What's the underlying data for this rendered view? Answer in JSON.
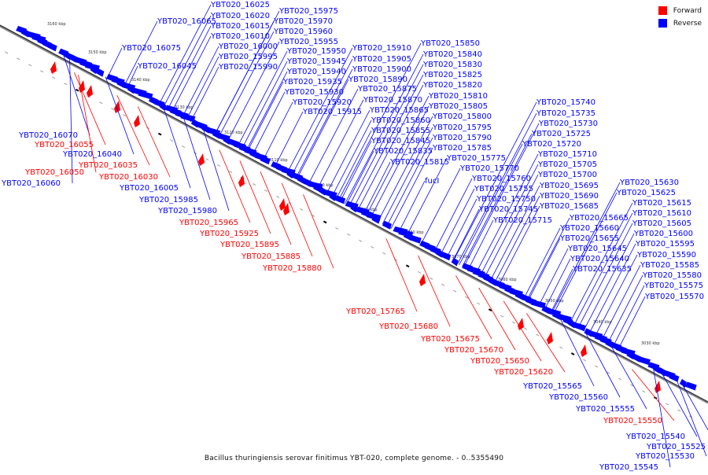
{
  "legend": {
    "forward_label": "Forward",
    "reverse_label": "Reverse",
    "forward_color": "#ff0000",
    "reverse_color": "#0000ff"
  },
  "caption": "Bacillus thuringiensis serovar finitimus YBT-020, complete genome. - 0..5355490",
  "ticks": [
    "3160 kbp",
    "3150 kbp",
    "3140 kbp",
    "3130 kbp",
    "3120 kbp",
    "3110 kbp",
    "3100 kbp",
    "3090 kbp",
    "3080 kbp",
    "3070 kbp",
    "3060 kbp",
    "3050 kbp",
    "3040 kbp",
    "3030 kbp"
  ],
  "genes": [
    {
      "name": "YBT020_16025",
      "strand": "reverse"
    },
    {
      "name": "YBT020_16020",
      "strand": "reverse"
    },
    {
      "name": "YBT020_16015",
      "strand": "reverse"
    },
    {
      "name": "YBT020_16065",
      "strand": "reverse"
    },
    {
      "name": "YBT020_16010",
      "strand": "reverse"
    },
    {
      "name": "YBT020_16000",
      "strand": "reverse"
    },
    {
      "name": "YBT020_15995",
      "strand": "reverse"
    },
    {
      "name": "YBT020_15990",
      "strand": "reverse"
    },
    {
      "name": "YBT020_16075",
      "strand": "reverse"
    },
    {
      "name": "YBT020_16045",
      "strand": "reverse"
    },
    {
      "name": "YBT020_15975",
      "strand": "reverse"
    },
    {
      "name": "YBT020_15970",
      "strand": "reverse"
    },
    {
      "name": "YBT020_15960",
      "strand": "reverse"
    },
    {
      "name": "YBT020_15955",
      "strand": "reverse"
    },
    {
      "name": "YBT020_15950",
      "strand": "reverse"
    },
    {
      "name": "YBT020_15945",
      "strand": "reverse"
    },
    {
      "name": "YBT020_15940",
      "strand": "reverse"
    },
    {
      "name": "YBT020_15935",
      "strand": "reverse"
    },
    {
      "name": "YBT020_15930",
      "strand": "reverse"
    },
    {
      "name": "YBT020_15920",
      "strand": "reverse"
    },
    {
      "name": "YBT020_15915",
      "strand": "reverse"
    },
    {
      "name": "YBT020_15910",
      "strand": "reverse"
    },
    {
      "name": "YBT020_15905",
      "strand": "reverse"
    },
    {
      "name": "YBT020_15900",
      "strand": "reverse"
    },
    {
      "name": "YBT020_15890",
      "strand": "reverse"
    },
    {
      "name": "YBT020_15875",
      "strand": "reverse"
    },
    {
      "name": "YBT020_15870",
      "strand": "reverse"
    },
    {
      "name": "YBT020_15865",
      "strand": "reverse"
    },
    {
      "name": "YBT020_15860",
      "strand": "reverse"
    },
    {
      "name": "YBT020_15855",
      "strand": "reverse"
    },
    {
      "name": "YBT020_15845",
      "strand": "reverse"
    },
    {
      "name": "YBT020_15835",
      "strand": "reverse"
    },
    {
      "name": "YBT020_15815",
      "strand": "reverse"
    },
    {
      "name": "fucI",
      "strand": "reverse"
    },
    {
      "name": "YBT020_15850",
      "strand": "reverse"
    },
    {
      "name": "YBT020_15840",
      "strand": "reverse"
    },
    {
      "name": "YBT020_15830",
      "strand": "reverse"
    },
    {
      "name": "YBT020_15825",
      "strand": "reverse"
    },
    {
      "name": "YBT020_15820",
      "strand": "reverse"
    },
    {
      "name": "YBT020_15810",
      "strand": "reverse"
    },
    {
      "name": "YBT020_15805",
      "strand": "reverse"
    },
    {
      "name": "YBT020_15800",
      "strand": "reverse"
    },
    {
      "name": "YBT020_15795",
      "strand": "reverse"
    },
    {
      "name": "YBT020_15790",
      "strand": "reverse"
    },
    {
      "name": "YBT020_15785",
      "strand": "reverse"
    },
    {
      "name": "YBT020_15775",
      "strand": "reverse"
    },
    {
      "name": "YBT020_15770",
      "strand": "reverse"
    },
    {
      "name": "YBT020_15760",
      "strand": "reverse"
    },
    {
      "name": "YBT020_15755",
      "strand": "reverse"
    },
    {
      "name": "YBT020_15750",
      "strand": "reverse"
    },
    {
      "name": "YBT020_15745",
      "strand": "reverse"
    },
    {
      "name": "YBT020_15715",
      "strand": "reverse"
    },
    {
      "name": "YBT020_15740",
      "strand": "reverse"
    },
    {
      "name": "YBT020_15735",
      "strand": "reverse"
    },
    {
      "name": "YBT020_15730",
      "strand": "reverse"
    },
    {
      "name": "YBT020_15725",
      "strand": "reverse"
    },
    {
      "name": "YBT020_15720",
      "strand": "reverse"
    },
    {
      "name": "YBT020_15710",
      "strand": "reverse"
    },
    {
      "name": "YBT020_15705",
      "strand": "reverse"
    },
    {
      "name": "YBT020_15700",
      "strand": "reverse"
    },
    {
      "name": "YBT020_15695",
      "strand": "reverse"
    },
    {
      "name": "YBT020_15690",
      "strand": "reverse"
    },
    {
      "name": "YBT020_15685",
      "strand": "reverse"
    },
    {
      "name": "YBT020_15665",
      "strand": "reverse"
    },
    {
      "name": "YBT020_15660",
      "strand": "reverse"
    },
    {
      "name": "YBT020_15655",
      "strand": "reverse"
    },
    {
      "name": "YBT020_15645",
      "strand": "reverse"
    },
    {
      "name": "YBT020_15640",
      "strand": "reverse"
    },
    {
      "name": "YBT020_15635",
      "strand": "reverse"
    },
    {
      "name": "YBT020_15630",
      "strand": "reverse"
    },
    {
      "name": "YBT020_15625",
      "strand": "reverse"
    },
    {
      "name": "YBT020_15615",
      "strand": "reverse"
    },
    {
      "name": "YBT020_15610",
      "strand": "reverse"
    },
    {
      "name": "YBT020_15605",
      "strand": "reverse"
    },
    {
      "name": "YBT020_15600",
      "strand": "reverse"
    },
    {
      "name": "YBT020_15595",
      "strand": "reverse"
    },
    {
      "name": "YBT020_15590",
      "strand": "reverse"
    },
    {
      "name": "YBT020_15585",
      "strand": "reverse"
    },
    {
      "name": "YBT020_15580",
      "strand": "reverse"
    },
    {
      "name": "YBT020_15575",
      "strand": "reverse"
    },
    {
      "name": "YBT020_15570",
      "strand": "reverse"
    },
    {
      "name": "YBT020_16070",
      "strand": "reverse"
    },
    {
      "name": "YBT020_16040",
      "strand": "reverse"
    },
    {
      "name": "YBT020_16060",
      "strand": "reverse"
    },
    {
      "name": "YBT020_16005",
      "strand": "reverse"
    },
    {
      "name": "YBT020_15985",
      "strand": "reverse"
    },
    {
      "name": "YBT020_15980",
      "strand": "reverse"
    },
    {
      "name": "YBT020_15565",
      "strand": "reverse"
    },
    {
      "name": "YBT020_15560",
      "strand": "reverse"
    },
    {
      "name": "YBT020_15555",
      "strand": "reverse"
    },
    {
      "name": "YBT020_15540",
      "strand": "reverse"
    },
    {
      "name": "YBT020_15525",
      "strand": "reverse"
    },
    {
      "name": "YBT020_15530",
      "strand": "reverse"
    },
    {
      "name": "YBT020_15545",
      "strand": "reverse"
    },
    {
      "name": "YBT020_16055",
      "strand": "forward"
    },
    {
      "name": "YBT020_16050",
      "strand": "forward"
    },
    {
      "name": "YBT020_16035",
      "strand": "forward"
    },
    {
      "name": "YBT020_16030",
      "strand": "forward"
    },
    {
      "name": "YBT020_15965",
      "strand": "forward"
    },
    {
      "name": "YBT020_15925",
      "strand": "forward"
    },
    {
      "name": "YBT020_15895",
      "strand": "forward"
    },
    {
      "name": "YBT020_15885",
      "strand": "forward"
    },
    {
      "name": "YBT020_15880",
      "strand": "forward"
    },
    {
      "name": "YBT020_15765",
      "strand": "forward"
    },
    {
      "name": "YBT020_15680",
      "strand": "forward"
    },
    {
      "name": "YBT020_15675",
      "strand": "forward"
    },
    {
      "name": "YBT020_15670",
      "strand": "forward"
    },
    {
      "name": "YBT020_15650",
      "strand": "forward"
    },
    {
      "name": "YBT020_15620",
      "strand": "forward"
    },
    {
      "name": "YBT020_15550",
      "strand": "forward"
    }
  ]
}
